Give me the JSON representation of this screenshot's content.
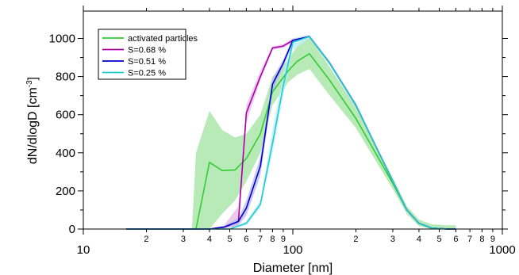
{
  "chart_data": {
    "type": "area",
    "xlabel": "Diameter [nm]",
    "ylabel": "dN/dlogD [cm",
    "ylabel_sup": "-3",
    "ylabel_close": "]",
    "x_scale": "log",
    "xlim": [
      10,
      1000
    ],
    "ylim": [
      0,
      1100
    ],
    "x_major_ticks": [
      10,
      100,
      1000
    ],
    "x_major_labels": [
      "10",
      "100",
      "1000"
    ],
    "x_minor_ticks": [
      20,
      30,
      40,
      50,
      60,
      70,
      80,
      90,
      200,
      300,
      400,
      500,
      600,
      700,
      800,
      900
    ],
    "x_minor_labels": [
      "2",
      "3",
      "4",
      "5",
      "6",
      "7",
      "8",
      "9",
      "2",
      "3",
      "4",
      "5",
      "6",
      "7",
      "8",
      "9"
    ],
    "y_ticks": [
      0,
      200,
      400,
      600,
      800,
      1000
    ],
    "y_tick_labels": [
      "0",
      "200",
      "400",
      "600",
      "800",
      "1000"
    ],
    "legend_position": "top-left",
    "series": [
      {
        "name": "activated particles",
        "color": "#33cc33",
        "band_color": "#b8eab8",
        "x": [
          16,
          33,
          34.5,
          40,
          46,
          53,
          60,
          70,
          80,
          95,
          105,
          120,
          150,
          200,
          300,
          350,
          400,
          460,
          550,
          600
        ],
        "y": [
          0,
          0,
          0,
          350,
          307,
          310,
          370,
          500,
          720,
          830,
          880,
          920,
          780,
          580,
          240,
          100,
          30,
          5,
          0,
          0
        ],
        "band_upper": [
          0,
          0,
          400,
          620,
          520,
          480,
          500,
          600,
          800,
          890,
          960,
          1010,
          850,
          640,
          270,
          120,
          50,
          25,
          20,
          20
        ],
        "band_lower": [
          0,
          0,
          0,
          0,
          80,
          150,
          250,
          400,
          650,
          770,
          810,
          840,
          700,
          530,
          210,
          80,
          15,
          0,
          0,
          0
        ]
      },
      {
        "name": "S=0.68 %",
        "color": "#aa00aa",
        "band_color": "#e6b8e6",
        "x": [
          16,
          40,
          47,
          55,
          60,
          70,
          80,
          90,
          100,
          120,
          150,
          200,
          300,
          350,
          400,
          460,
          550,
          600
        ],
        "y": [
          0,
          0,
          10,
          40,
          610,
          800,
          950,
          960,
          990,
          1010,
          870,
          650,
          250,
          100,
          30,
          5,
          0,
          0
        ],
        "band_upper": [
          0,
          0,
          20,
          120,
          650,
          830,
          960,
          970,
          1000,
          1015,
          880,
          660,
          255,
          105,
          32,
          6,
          0,
          0
        ],
        "band_lower": [
          0,
          0,
          5,
          10,
          560,
          780,
          940,
          950,
          980,
          1005,
          860,
          640,
          245,
          95,
          28,
          4,
          0,
          0
        ]
      },
      {
        "name": "S=0.51 %",
        "color": "#0000cc",
        "band_color": "#b8b8ee",
        "x": [
          16,
          40,
          47,
          55,
          60,
          70,
          80,
          90,
          100,
          120,
          150,
          200,
          300,
          350,
          400,
          460,
          550,
          600
        ],
        "y": [
          0,
          0,
          10,
          40,
          110,
          330,
          760,
          870,
          990,
          1010,
          870,
          650,
          250,
          100,
          30,
          5,
          0,
          0
        ],
        "band_upper": [
          0,
          0,
          15,
          60,
          150,
          380,
          790,
          890,
          1000,
          1015,
          880,
          660,
          255,
          105,
          32,
          6,
          0,
          0
        ],
        "band_lower": [
          0,
          0,
          5,
          20,
          70,
          280,
          720,
          850,
          980,
          1005,
          860,
          640,
          245,
          95,
          28,
          4,
          0,
          0
        ]
      },
      {
        "name": "S=0.25 %",
        "color": "#22cccc",
        "band_color": "#b8ecf5",
        "x": [
          16,
          50,
          60,
          70,
          80,
          90,
          100,
          120,
          150,
          200,
          300,
          350,
          400,
          460,
          550,
          600
        ],
        "y": [
          0,
          0,
          30,
          130,
          450,
          750,
          980,
          1010,
          870,
          650,
          250,
          100,
          30,
          5,
          0,
          0
        ],
        "band_upper": [
          0,
          0,
          40,
          150,
          520,
          820,
          1000,
          1020,
          880,
          660,
          255,
          105,
          32,
          6,
          0,
          0
        ],
        "band_lower": [
          0,
          0,
          20,
          110,
          400,
          700,
          940,
          1000,
          860,
          640,
          245,
          95,
          28,
          4,
          0,
          0
        ]
      }
    ]
  }
}
